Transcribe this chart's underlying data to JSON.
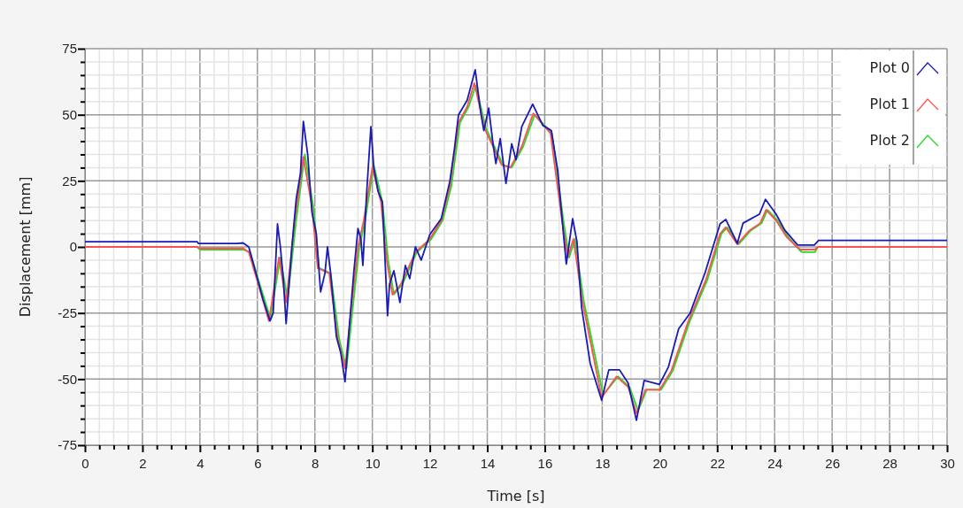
{
  "chart_data": {
    "type": "line",
    "xlabel": "Time [s]",
    "ylabel": "Displacement [mm]",
    "xlim": [
      0,
      30
    ],
    "ylim": [
      -75,
      75
    ],
    "xticks": [
      0,
      {
        "value": 0.5,
        "label": null
      },
      {
        "value": 1,
        "label": null
      },
      {
        "value": 1.5,
        "label": null
      },
      2,
      {
        "value": 2.5,
        "label": null
      },
      {
        "value": 3,
        "label": null
      },
      {
        "value": 3.5,
        "label": null
      },
      4,
      {
        "value": 4.5,
        "label": null
      },
      {
        "value": 5,
        "label": null
      },
      {
        "value": 5.5,
        "label": null
      },
      6,
      {
        "value": 6.5,
        "label": null
      },
      {
        "value": 7,
        "label": null
      },
      {
        "value": 7.5,
        "label": null
      },
      8,
      {
        "value": 8.5,
        "label": null
      },
      {
        "value": 9,
        "label": null
      },
      {
        "value": 9.5,
        "label": null
      },
      10,
      {
        "value": 10.5,
        "label": null
      },
      {
        "value": 11,
        "label": null
      },
      {
        "value": 11.5,
        "label": null
      },
      12,
      {
        "value": 12.5,
        "label": null
      },
      {
        "value": 13,
        "label": null
      },
      {
        "value": 13.5,
        "label": null
      },
      14,
      {
        "value": 14.5,
        "label": null
      },
      {
        "value": 15,
        "label": null
      },
      {
        "value": 15.5,
        "label": null
      },
      16,
      {
        "value": 16.5,
        "label": null
      },
      {
        "value": 17,
        "label": null
      },
      {
        "value": 17.5,
        "label": null
      },
      18,
      {
        "value": 18.5,
        "label": null
      },
      {
        "value": 19,
        "label": null
      },
      {
        "value": 19.5,
        "label": null
      },
      20,
      {
        "value": 20.5,
        "label": null
      },
      {
        "value": 21,
        "label": null
      },
      {
        "value": 21.5,
        "label": null
      },
      22,
      {
        "value": 22.5,
        "label": null
      },
      {
        "value": 23,
        "label": null
      },
      {
        "value": 23.5,
        "label": null
      },
      24,
      {
        "value": 24.5,
        "label": null
      },
      {
        "value": 25,
        "label": null
      },
      {
        "value": 25.5,
        "label": null
      },
      26,
      {
        "value": 26.5,
        "label": null
      },
      {
        "value": 27,
        "label": null
      },
      {
        "value": 27.5,
        "label": null
      },
      28,
      {
        "value": 28.5,
        "label": null
      },
      {
        "value": 29,
        "label": null
      },
      {
        "value": 29.5,
        "label": null
      },
      30
    ],
    "yticks": [
      -75,
      {
        "value": -70,
        "label": null
      },
      {
        "value": -65,
        "label": null
      },
      {
        "value": -60,
        "label": null
      },
      {
        "value": -55,
        "label": null
      },
      -50,
      {
        "value": -45,
        "label": null
      },
      {
        "value": -40,
        "label": null
      },
      {
        "value": -35,
        "label": null
      },
      {
        "value": -30,
        "label": null
      },
      -25,
      {
        "value": -20,
        "label": null
      },
      {
        "value": -15,
        "label": null
      },
      {
        "value": -10,
        "label": null
      },
      {
        "value": -5,
        "label": null
      },
      0,
      {
        "value": 5,
        "label": null
      },
      {
        "value": 10,
        "label": null
      },
      {
        "value": 15,
        "label": null
      },
      {
        "value": 20,
        "label": null
      },
      25,
      {
        "value": 30,
        "label": null
      },
      {
        "value": 35,
        "label": null
      },
      {
        "value": 40,
        "label": null
      },
      {
        "value": 45,
        "label": null
      },
      50,
      {
        "value": 55,
        "label": null
      },
      {
        "value": 60,
        "label": null
      },
      {
        "value": 65,
        "label": null
      },
      {
        "value": 70,
        "label": null
      },
      75
    ],
    "grid": true,
    "legend": "top right",
    "marker": "none",
    "line_style": "solid",
    "series": [
      {
        "name": "Plot 0",
        "color": "#1a1ab4",
        "x": [
          0,
          3.9,
          3.95,
          5.3,
          5.5,
          5.7,
          6.0,
          6.2,
          6.44,
          6.55,
          6.7,
          6.8,
          6.9,
          7.0,
          7.2,
          7.35,
          7.5,
          7.6,
          7.75,
          7.9,
          8.05,
          8.2,
          8.35,
          8.44,
          8.55,
          8.75,
          8.9,
          9.05,
          9.2,
          9.36,
          9.5,
          9.6,
          9.67,
          9.8,
          9.95,
          10.05,
          10.2,
          10.35,
          10.53,
          10.6,
          10.75,
          10.96,
          11.15,
          11.3,
          11.5,
          11.7,
          12.0,
          12.4,
          12.7,
          12.85,
          13.0,
          13.3,
          13.58,
          13.77,
          13.88,
          14.05,
          14.2,
          14.3,
          14.45,
          14.65,
          14.85,
          15.0,
          15.2,
          15.58,
          15.93,
          16.23,
          16.45,
          16.65,
          16.75,
          16.97,
          17.12,
          17.28,
          17.58,
          17.98,
          18.23,
          18.6,
          18.9,
          19.19,
          19.46,
          19.99,
          20.3,
          20.66,
          21.06,
          21.58,
          22.1,
          22.3,
          22.7,
          22.9,
          23.47,
          23.68,
          24.05,
          24.35,
          24.8,
          25.38,
          25.53,
          30
        ],
        "values": [
          2,
          2,
          1.3,
          1.3,
          1.5,
          0,
          -12,
          -20,
          -28,
          -25,
          8.7,
          0,
          -12,
          -29,
          0,
          18,
          28,
          47.5,
          35,
          13,
          5,
          -17,
          -10,
          0,
          -10,
          -34,
          -40,
          -51,
          -30,
          -9,
          7,
          3,
          -7,
          20,
          45.5,
          30,
          21,
          17,
          -26,
          -14,
          -9,
          -21,
          -7,
          -12,
          0,
          -5,
          4.7,
          10.7,
          25,
          36.5,
          50,
          55.5,
          67,
          51,
          44,
          52.5,
          39,
          31.5,
          41,
          24,
          39,
          33,
          45.5,
          54,
          46,
          44,
          29,
          5,
          -6.5,
          10.7,
          2,
          -22.7,
          -44,
          -58,
          -46.5,
          -46.5,
          -51.5,
          -65.6,
          -50.5,
          -52,
          -45.5,
          -31,
          -25,
          -9.7,
          8.7,
          10.4,
          1.3,
          9,
          12.4,
          18,
          12.4,
          6.4,
          0.7,
          0.7,
          2.5,
          2.5
        ]
      },
      {
        "name": "Plot 1",
        "color": "#ff5050",
        "x": [
          0,
          3.9,
          4.0,
          5.5,
          5.7,
          6.0,
          6.4,
          6.75,
          7.0,
          7.3,
          7.6,
          7.9,
          8.1,
          8.5,
          8.8,
          9.05,
          9.3,
          9.5,
          9.7,
          10.0,
          10.3,
          10.5,
          10.7,
          11.0,
          11.5,
          12.0,
          12.4,
          12.7,
          13.0,
          13.3,
          13.55,
          13.9,
          14.2,
          14.5,
          14.8,
          15.2,
          15.6,
          16.2,
          16.6,
          16.8,
          17.0,
          17.3,
          17.98,
          18.5,
          18.9,
          19.2,
          19.5,
          20.0,
          20.4,
          21.0,
          21.6,
          22.1,
          22.3,
          22.7,
          23.1,
          23.5,
          23.7,
          24.05,
          24.4,
          24.77,
          24.9,
          25.4,
          25.5,
          30
        ],
        "values": [
          0,
          0,
          -0.5,
          -0.5,
          -2,
          -13,
          -28,
          -4,
          -21,
          10,
          34,
          15,
          -8,
          -10,
          -35,
          -46,
          -20,
          0,
          10,
          30,
          17,
          -5,
          -18,
          -14,
          -2,
          3,
          10,
          23,
          47,
          53,
          62,
          45,
          38,
          31,
          30,
          38,
          50.5,
          43,
          10,
          -4,
          3,
          -20,
          -57,
          -49,
          -53,
          -63,
          -54,
          -54,
          -47,
          -28,
          -12.7,
          5,
          7.4,
          1,
          6,
          9,
          14,
          10,
          4,
          0,
          -1,
          -1,
          0,
          0
        ]
      },
      {
        "name": "Plot 2",
        "color": "#22dd22",
        "x": [
          0,
          3.9,
          4.0,
          5.5,
          5.75,
          6.05,
          6.45,
          6.8,
          7.05,
          7.35,
          7.65,
          7.95,
          8.15,
          8.55,
          8.85,
          9.1,
          9.35,
          9.55,
          9.75,
          10.05,
          10.35,
          10.55,
          10.75,
          11.05,
          11.55,
          12.05,
          12.45,
          12.75,
          13.05,
          13.35,
          13.6,
          13.95,
          14.25,
          14.55,
          14.85,
          15.25,
          15.65,
          16.25,
          16.65,
          16.85,
          17.05,
          17.35,
          18.03,
          18.55,
          18.95,
          19.25,
          19.55,
          20.05,
          20.45,
          21.05,
          21.65,
          22.15,
          22.35,
          22.75,
          23.15,
          23.55,
          23.75,
          24.1,
          24.45,
          24.85,
          24.95,
          25.4,
          25.5,
          30
        ],
        "values": [
          0,
          0,
          -1,
          -1,
          -2,
          -13,
          -27,
          -4,
          -20,
          10,
          35,
          15,
          -8,
          -10,
          -35,
          -46,
          -20,
          0,
          10,
          31,
          17,
          -5,
          -18,
          -14,
          -2,
          3,
          10,
          23,
          47,
          53,
          61,
          45,
          38,
          31,
          30,
          38,
          50,
          43,
          10,
          -4,
          3,
          -20,
          -56,
          -49,
          -53,
          -62,
          -54,
          -54,
          -47,
          -28,
          -12.7,
          5,
          7.4,
          1,
          6,
          9,
          14,
          10,
          4,
          -1,
          -2,
          -2,
          0,
          0
        ]
      }
    ]
  }
}
